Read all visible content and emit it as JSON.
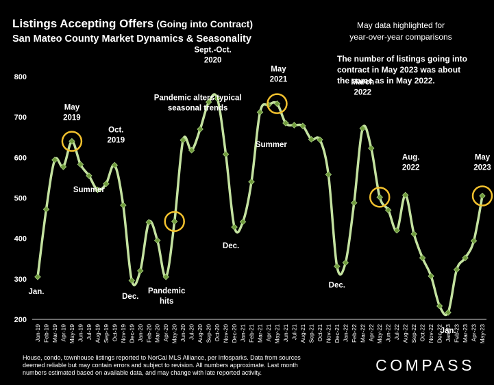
{
  "title_main": "Listings Accepting Offers",
  "title_paren": "(Going into Contract)",
  "subtitle": "San Mateo County Market Dynamics & Seasonality",
  "side_note": [
    "May data highlighted for",
    "year-over-year comparisons"
  ],
  "commentary": [
    "The number of listings going into",
    "contract in May 2023 was about",
    "the same as in May 2022."
  ],
  "footnote": [
    "House, condo, townhouse listings reported to NorCal MLS Alliance, per Infosparks. Data from sources",
    "deemed reliable but may contain errors and subject to revision. All numbers approximate. Last month",
    "numbers estimated based on available data, and may change with late reported activity."
  ],
  "brand": "COMPASS",
  "colors": {
    "background": "#000000",
    "line": "#c4e2a0",
    "marker": "#6f9a3c",
    "marker_edge": "#a8cf82",
    "highlight": "#f2c12e",
    "text": "#ffffff",
    "axis": "#d9d9d9"
  },
  "chart_data": {
    "type": "line",
    "title": "Listings Accepting Offers (Going into Contract)",
    "subtitle": "San Mateo County Market Dynamics & Seasonality",
    "ylim": [
      200,
      800
    ],
    "yticks": [
      200,
      300,
      400,
      500,
      600,
      700,
      800
    ],
    "grid": false,
    "legend": "none",
    "categories": [
      "Jan-19",
      "Feb-19",
      "Mar-19",
      "Apr-19",
      "May-19",
      "Jun-19",
      "Jul-19",
      "Aug-19",
      "Sep-19",
      "Oct-19",
      "Nov-19",
      "Dec-19",
      "Jan-20",
      "Feb-20",
      "Mar-20",
      "Apr-20",
      "May-20",
      "Jun-20",
      "Jul-20",
      "Aug-20",
      "Sep-20",
      "Oct-20",
      "Nov-20",
      "Dec-20",
      "Jan-21",
      "Feb-21",
      "Mar-21",
      "Apr-21",
      "May-21",
      "Jun-21",
      "Jul-21",
      "Aug-21",
      "Sep-21",
      "Oct-21",
      "Nov-21",
      "Dec-21",
      "Jan-22",
      "Feb-22",
      "Mar-22",
      "Apr-22",
      "May-22",
      "Jun-22",
      "Jul-22",
      "Aug-22",
      "Sep-22",
      "Oct-22",
      "Nov-22",
      "Dec-22",
      "Jan-23",
      "Feb-23",
      "Mar-23",
      "Apr-23",
      "May-23"
    ],
    "x_tick_labels": [
      "Jan-19",
      "Feb-19",
      "Mar-19",
      "Apr-19",
      "May-19",
      "Jun-19",
      "Jul-19",
      "Aug-19",
      "Sep-19",
      "Oct-19",
      "Nov-19",
      "Dec-19",
      "Jan-20",
      "Feb-20",
      "Mar-20",
      "Apr-20",
      "May-20",
      "Jun-20",
      "Jul-20",
      "Aug-20",
      "Sep-20",
      "Oct-20",
      "Nov-20",
      "Dec-20",
      "Jan-21",
      "Feb-21",
      "Mar-21",
      "Apr-21",
      "May-21",
      "Jun-21",
      "Jul-21",
      "Aug-21",
      "Sep-21",
      "Oct-21",
      "Nov-21",
      "Dec-21",
      "Jan-22",
      "Feb-22",
      "Mar-22",
      "Apr-22",
      "May-22",
      "Jun-22",
      "Jul-22",
      "Aug-22",
      "Sep-22",
      "Oct-22",
      "Nov-22",
      "Dec-22",
      "Jan-23",
      "Feb-23",
      "Mar-23",
      "Apr-23",
      "May-23"
    ],
    "values": [
      305,
      472,
      594,
      577,
      640,
      583,
      555,
      520,
      535,
      581,
      482,
      296,
      320,
      440,
      395,
      305,
      442,
      643,
      618,
      670,
      737,
      746,
      608,
      428,
      441,
      540,
      712,
      730,
      733,
      685,
      680,
      678,
      645,
      644,
      558,
      331,
      340,
      488,
      672,
      623,
      502,
      470,
      420,
      507,
      411,
      352,
      307,
      233,
      217,
      323,
      352,
      394,
      505
    ],
    "highlight_months": [
      "May-19",
      "May-20",
      "May-21",
      "May-22",
      "May-23"
    ],
    "annotations": [
      {
        "lines": [
          "Jan."
        ],
        "at": "Jan-19"
      },
      {
        "lines": [
          "May",
          "2019"
        ],
        "at": "May-19"
      },
      {
        "lines": [
          "Summer"
        ],
        "at": "Jul-19"
      },
      {
        "lines": [
          "Oct.",
          "2019"
        ],
        "at": "Oct-19"
      },
      {
        "lines": [
          "Dec."
        ],
        "at": "Dec-19"
      },
      {
        "lines": [
          "Pandemic",
          "hits"
        ],
        "at": "Apr-20"
      },
      {
        "lines": [
          "Pandemic alters typical",
          "seasonal trends"
        ],
        "at": "Jul-20"
      },
      {
        "lines": [
          "Sept.-Oct.",
          "2020"
        ],
        "at": "Sep-20"
      },
      {
        "lines": [
          "Dec."
        ],
        "at": "Dec-20"
      },
      {
        "lines": [
          "May",
          "2021"
        ],
        "at": "May-21"
      },
      {
        "lines": [
          "Summer"
        ],
        "at": "Aug-21"
      },
      {
        "lines": [
          "Dec."
        ],
        "at": "Dec-21"
      },
      {
        "lines": [
          "March",
          "2022"
        ],
        "at": "Mar-22"
      },
      {
        "lines": [
          "Aug.",
          "2022"
        ],
        "at": "Aug-22"
      },
      {
        "lines": [
          "Jan."
        ],
        "at": "Jan-23"
      },
      {
        "lines": [
          "May",
          "2023"
        ],
        "at": "May-23"
      }
    ]
  }
}
